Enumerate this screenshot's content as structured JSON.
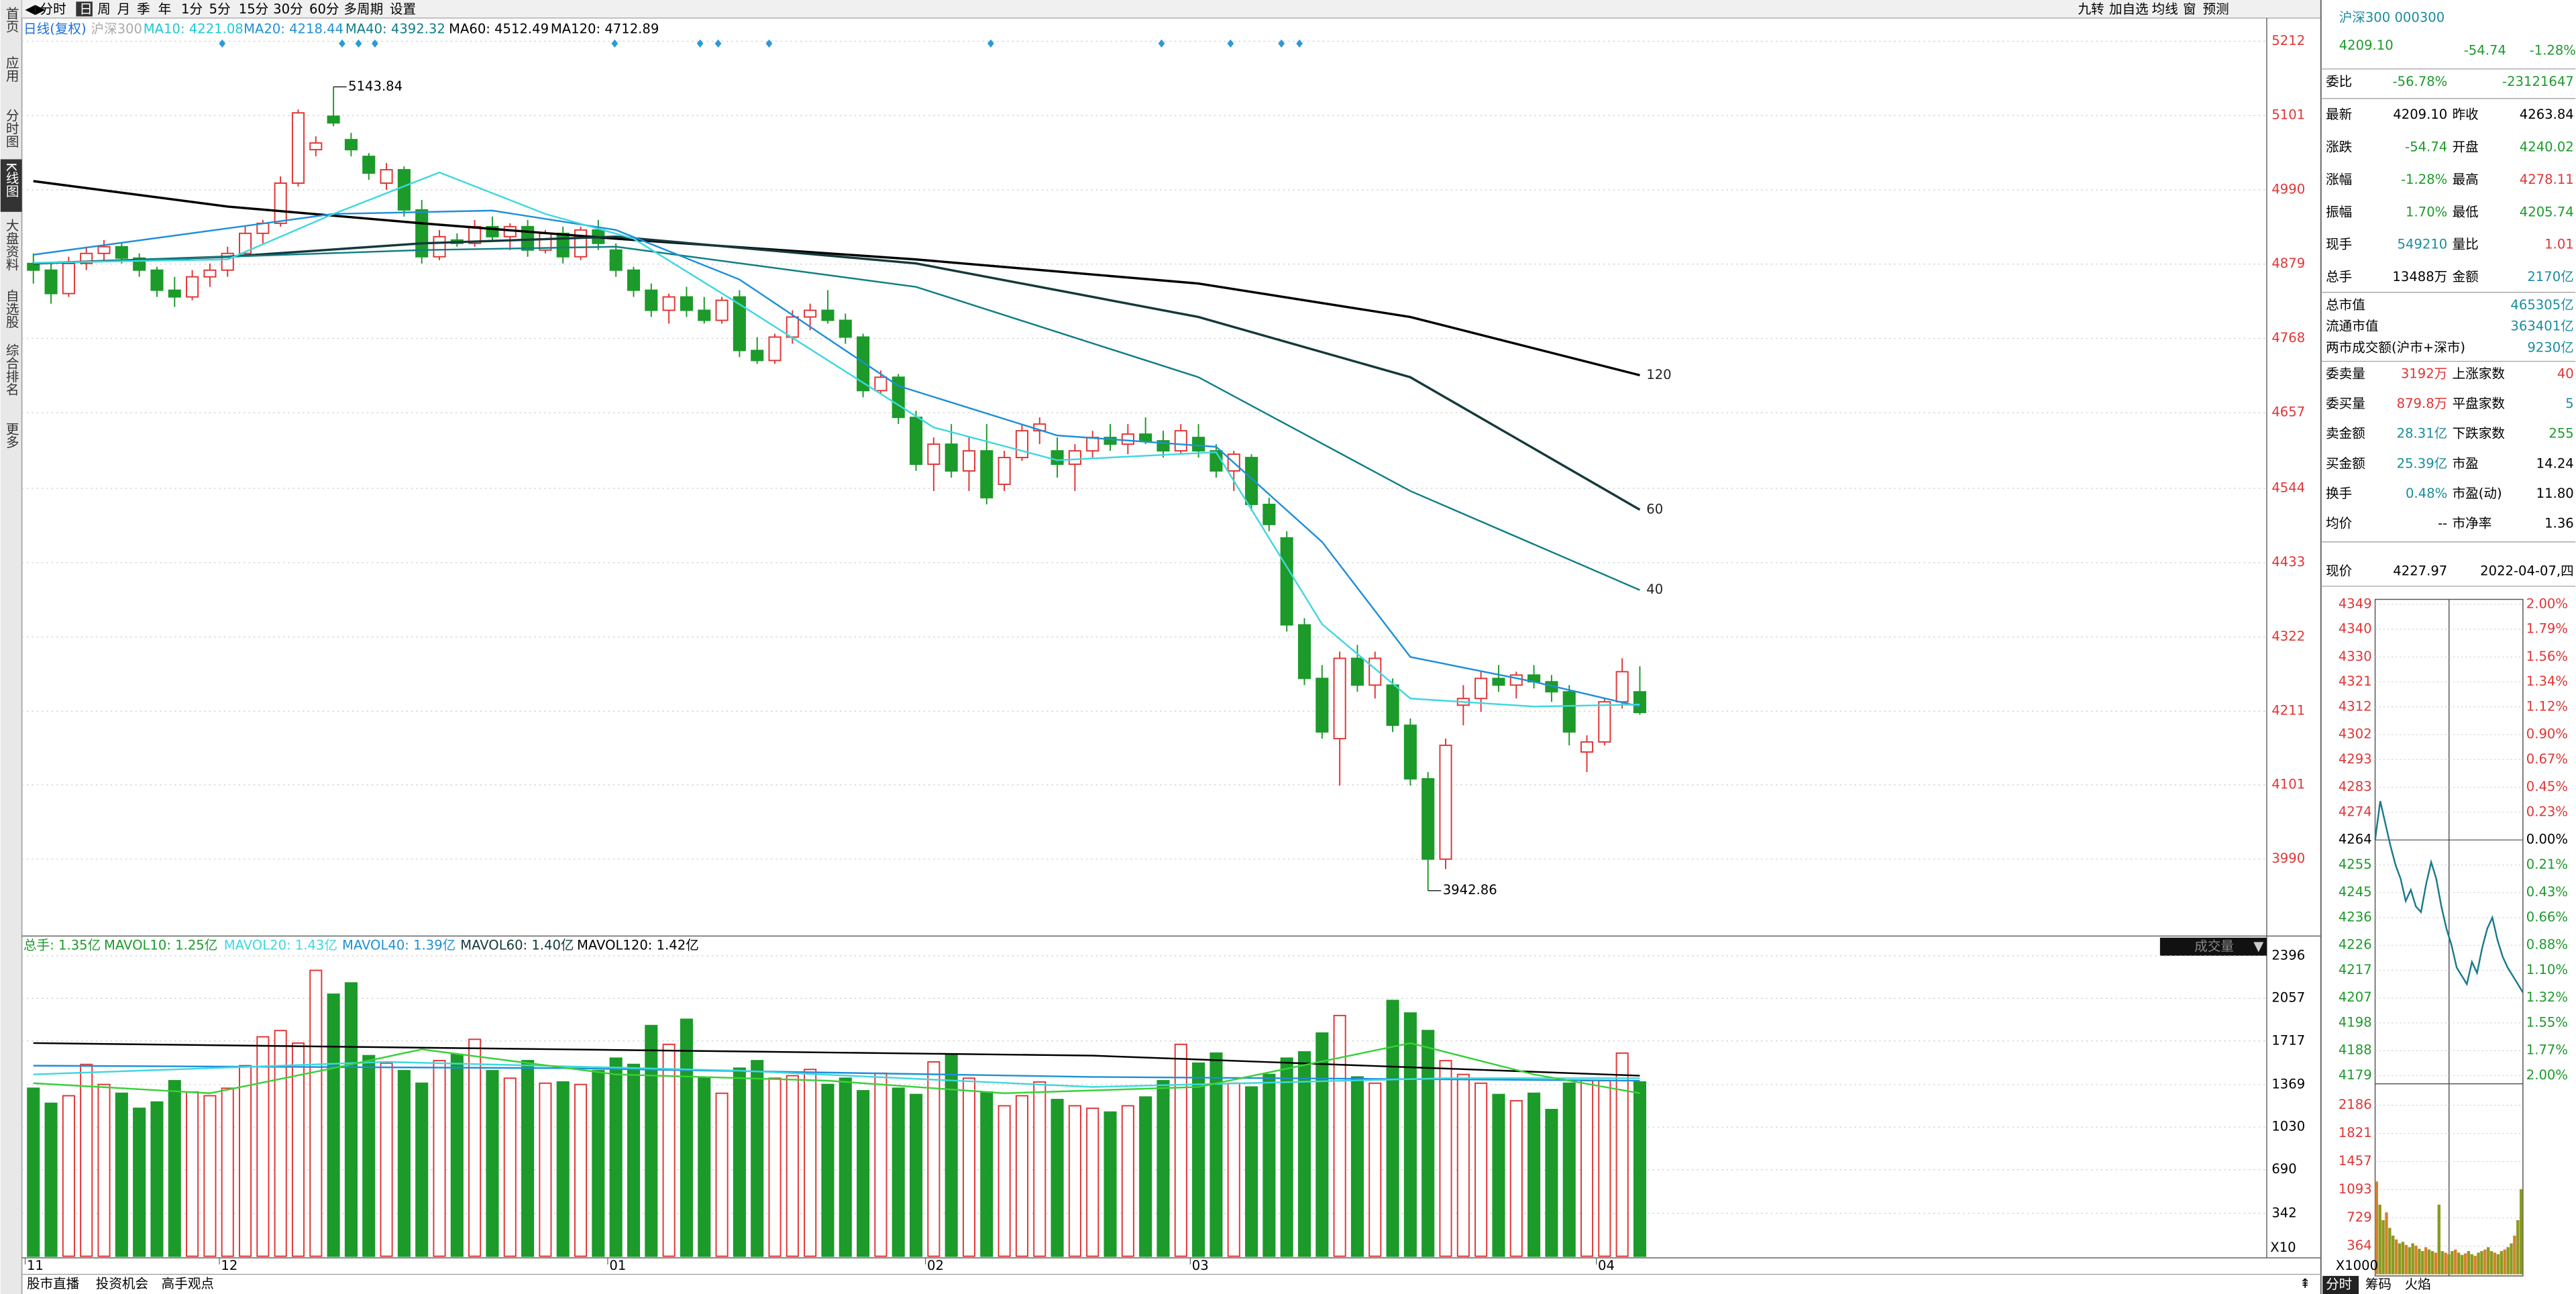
{
  "toolbar": [
    "分时",
    "日",
    "周",
    "月",
    "季",
    "年",
    "1分",
    "5分",
    "15分",
    "30分",
    "60分",
    "多周期",
    "设置"
  ],
  "toolbar_right": [
    "九转",
    "加自选",
    "均线",
    "窗",
    "预测"
  ],
  "sidebar": [
    "首页",
    "应用",
    "分时图",
    "K线图",
    "大盘资料",
    "自选股",
    "综合排名",
    "更多"
  ],
  "main": {
    "legend": [
      "日线(复权)",
      "沪深300",
      "MA10: 4221.08",
      "MA20: 4218.44",
      "MA40: 4392.32",
      "MA60: 4512.49",
      "MA120: 4712.89"
    ],
    "ylim": [
      3880,
      5254
    ],
    "yticks": [
      5212,
      5101,
      4990,
      4879,
      4768,
      4657,
      4544,
      4433,
      4322,
      4211,
      4101,
      3990
    ],
    "high_label": "5143.84",
    "low_label": "3942.86",
    "candles": [
      [
        4880,
        4895,
        4850,
        4870
      ],
      [
        4870,
        4880,
        4820,
        4835
      ],
      [
        4835,
        4890,
        4830,
        4880
      ],
      [
        4880,
        4905,
        4870,
        4895
      ],
      [
        4895,
        4915,
        4885,
        4905
      ],
      [
        4905,
        4910,
        4880,
        4888
      ],
      [
        4888,
        4895,
        4860,
        4870
      ],
      [
        4870,
        4875,
        4830,
        4840
      ],
      [
        4840,
        4860,
        4815,
        4830
      ],
      [
        4830,
        4870,
        4825,
        4860
      ],
      [
        4860,
        4880,
        4845,
        4870
      ],
      [
        4870,
        4905,
        4860,
        4895
      ],
      [
        4895,
        4935,
        4890,
        4925
      ],
      [
        4925,
        4945,
        4910,
        4940
      ],
      [
        4940,
        5010,
        4935,
        5000
      ],
      [
        5000,
        5110,
        4995,
        5105
      ],
      [
        5050,
        5070,
        5040,
        5060
      ],
      [
        5100,
        5143.84,
        5085,
        5090
      ],
      [
        5065,
        5075,
        5040,
        5050
      ],
      [
        5040,
        5045,
        5005,
        5015
      ],
      [
        5000,
        5030,
        4990,
        5020
      ],
      [
        5020,
        5025,
        4950,
        4960
      ],
      [
        4960,
        4975,
        4880,
        4890
      ],
      [
        4890,
        4930,
        4885,
        4920
      ],
      [
        4915,
        4925,
        4905,
        4910
      ],
      [
        4910,
        4945,
        4905,
        4935
      ],
      [
        4935,
        4950,
        4915,
        4920
      ],
      [
        4920,
        4940,
        4900,
        4935
      ],
      [
        4935,
        4945,
        4890,
        4900
      ],
      [
        4900,
        4930,
        4895,
        4925
      ],
      [
        4925,
        4935,
        4880,
        4890
      ],
      [
        4890,
        4935,
        4885,
        4930
      ],
      [
        4930,
        4945,
        4900,
        4910
      ],
      [
        4900,
        4910,
        4860,
        4870
      ],
      [
        4870,
        4875,
        4830,
        4840
      ],
      [
        4840,
        4850,
        4800,
        4810
      ],
      [
        4810,
        4835,
        4790,
        4830
      ],
      [
        4830,
        4845,
        4800,
        4810
      ],
      [
        4810,
        4830,
        4790,
        4795
      ],
      [
        4795,
        4830,
        4790,
        4825
      ],
      [
        4830,
        4840,
        4740,
        4750
      ],
      [
        4750,
        4770,
        4730,
        4735
      ],
      [
        4735,
        4775,
        4730,
        4770
      ],
      [
        4770,
        4810,
        4760,
        4800
      ],
      [
        4800,
        4820,
        4780,
        4810
      ],
      [
        4810,
        4840,
        4790,
        4795
      ],
      [
        4795,
        4805,
        4760,
        4770
      ],
      [
        4770,
        4775,
        4680,
        4690
      ],
      [
        4690,
        4720,
        4685,
        4710
      ],
      [
        4710,
        4715,
        4640,
        4650
      ],
      [
        4650,
        4660,
        4570,
        4580
      ],
      [
        4580,
        4620,
        4540,
        4610
      ],
      [
        4610,
        4640,
        4560,
        4570
      ],
      [
        4570,
        4620,
        4540,
        4600
      ],
      [
        4600,
        4640,
        4520,
        4530
      ],
      [
        4550,
        4600,
        4540,
        4590
      ],
      [
        4590,
        4640,
        4585,
        4630
      ],
      [
        4630,
        4650,
        4610,
        4640
      ],
      [
        4600,
        4620,
        4560,
        4580
      ],
      [
        4580,
        4610,
        4540,
        4600
      ],
      [
        4600,
        4630,
        4590,
        4620
      ],
      [
        4620,
        4640,
        4600,
        4610
      ],
      [
        4610,
        4640,
        4595,
        4625
      ],
      [
        4625,
        4650,
        4610,
        4615
      ],
      [
        4615,
        4630,
        4590,
        4600
      ],
      [
        4600,
        4640,
        4595,
        4630
      ],
      [
        4620,
        4640,
        4590,
        4600
      ],
      [
        4600,
        4610,
        4560,
        4570
      ],
      [
        4570,
        4600,
        4540,
        4595
      ],
      [
        4590,
        4595,
        4510,
        4520
      ],
      [
        4520,
        4530,
        4480,
        4490
      ],
      [
        4470,
        4480,
        4330,
        4340
      ],
      [
        4340,
        4350,
        4250,
        4260
      ],
      [
        4260,
        4280,
        4170,
        4180
      ],
      [
        4170,
        4300,
        4100,
        4290
      ],
      [
        4290,
        4310,
        4240,
        4250
      ],
      [
        4250,
        4300,
        4230,
        4290
      ],
      [
        4250,
        4260,
        4180,
        4190
      ],
      [
        4190,
        4200,
        4100,
        4110
      ],
      [
        4110,
        4120,
        3942.86,
        3990
      ],
      [
        3990,
        4170,
        3975,
        4160
      ],
      [
        4220,
        4250,
        4190,
        4230
      ],
      [
        4230,
        4270,
        4210,
        4260
      ],
      [
        4260,
        4280,
        4240,
        4250
      ],
      [
        4250,
        4270,
        4230,
        4265
      ],
      [
        4265,
        4280,
        4245,
        4255
      ],
      [
        4255,
        4265,
        4225,
        4240
      ],
      [
        4240,
        4250,
        4160,
        4180
      ],
      [
        4150,
        4175,
        4120,
        4165
      ],
      [
        4165,
        4230,
        4160,
        4225
      ],
      [
        4225,
        4290,
        4215,
        4270
      ],
      [
        4240,
        4278.11,
        4205.74,
        4209.1
      ]
    ],
    "ma": [
      {
        "color": "#000000",
        "end_label": "120",
        "x": [
          0,
          11,
          22,
          33,
          50,
          66,
          78,
          91
        ],
        "values": [
          5003,
          4965,
          4940,
          4917,
          4886,
          4850,
          4800,
          4713
        ]
      },
      {
        "color": "#14393b",
        "end_label": "60",
        "x": [
          0,
          11,
          22,
          33,
          50,
          66,
          78,
          91
        ],
        "values": [
          4880,
          4890,
          4910,
          4920,
          4880,
          4800,
          4710,
          4512
        ]
      },
      {
        "color": "#0f7e86",
        "end_label": "40",
        "x": [
          0,
          22,
          33,
          50,
          66,
          78,
          91
        ],
        "values": [
          4880,
          4900,
          4905,
          4845,
          4710,
          4540,
          4392
        ]
      },
      {
        "color": "#1e8fd8",
        "x": [
          0,
          17,
          26,
          33,
          40,
          49,
          58,
          67,
          73,
          78,
          85,
          91
        ],
        "values": [
          4893,
          4954,
          4959,
          4930,
          4856,
          4697,
          4623,
          4606,
          4464,
          4292,
          4255,
          4218
        ]
      },
      {
        "color": "#3fd7e0",
        "x": [
          0,
          11,
          17,
          23,
          29,
          34,
          40,
          51,
          58,
          67,
          73,
          78,
          85,
          91
        ],
        "values": [
          4881,
          4886,
          4954,
          5016,
          4954,
          4917,
          4819,
          4635,
          4586,
          4598,
          4341,
          4230,
          4218,
          4221
        ]
      }
    ],
    "vol_legend": [
      "总手: 1.35亿",
      "MAVOL10: 1.25亿",
      "MAVOL20: 1.43亿",
      "MAVOL40: 1.39亿",
      "MAVOL60: 1.40亿",
      "MAVOL120: 1.42亿"
    ],
    "vol_button": "成交量",
    "vol_unit": "X10",
    "vol_ylim": [
      0,
      2423
    ],
    "vol_yticks": [
      2396,
      2057,
      1717,
      1369,
      1030,
      690,
      342
    ],
    "volume": [
      1340,
      1220,
      1280,
      1530,
      1370,
      1300,
      1180,
      1230,
      1400,
      1310,
      1280,
      1340,
      1520,
      1750,
      1800,
      1700,
      2280,
      2090,
      2180,
      1600,
      1540,
      1480,
      1380,
      1560,
      1610,
      1730,
      1480,
      1420,
      1560,
      1380,
      1390,
      1370,
      1480,
      1580,
      1530,
      1840,
      1690,
      1890,
      1420,
      1300,
      1500,
      1560,
      1420,
      1440,
      1490,
      1370,
      1420,
      1320,
      1460,
      1340,
      1290,
      1550,
      1610,
      1420,
      1310,
      1200,
      1280,
      1390,
      1250,
      1200,
      1180,
      1150,
      1200,
      1270,
      1400,
      1690,
      1540,
      1620,
      1380,
      1350,
      1450,
      1580,
      1630,
      1780,
      1920,
      1430,
      1380,
      2040,
      1940,
      1800,
      1560,
      1450,
      1380,
      1290,
      1240,
      1300,
      1170,
      1380,
      1400,
      1400,
      1620,
      1390
    ],
    "vol_ma": [
      {
        "color": "#000000",
        "x": [
          0,
          30,
          60,
          91
        ],
        "values": [
          1700,
          1650,
          1600,
          1440
        ]
      },
      {
        "color": "#1e8fd8",
        "x": [
          0,
          30,
          60,
          91
        ],
        "values": [
          1520,
          1500,
          1430,
          1400
        ]
      },
      {
        "color": "#3fd7e0",
        "x": [
          0,
          20,
          40,
          60,
          80,
          91
        ],
        "values": [
          1450,
          1550,
          1480,
          1350,
          1420,
          1420
        ]
      },
      {
        "color": "#3ad03a",
        "x": [
          0,
          10,
          17,
          22,
          33,
          45,
          55,
          66,
          78,
          85,
          91
        ],
        "values": [
          1380,
          1300,
          1500,
          1650,
          1450,
          1400,
          1300,
          1350,
          1700,
          1450,
          1300
        ]
      }
    ],
    "months": {
      "labels": [
        "11",
        "12",
        "01",
        "02",
        "03",
        "04"
      ],
      "index": [
        0,
        11,
        33,
        51,
        66,
        89
      ]
    }
  },
  "bottom_tabs": [
    "股市直播",
    "投资机会",
    "高手观点"
  ],
  "quote": {
    "name": "沪深300 000300",
    "price": "4209.10",
    "change": "-54.74",
    "pct": "-1.28%",
    "ratio": [
      "委比",
      "-56.78%",
      "-23121647"
    ],
    "rows": [
      [
        "最新",
        "4209.10",
        "昨收",
        "4263.84"
      ],
      [
        "涨跌",
        "-54.74",
        "开盘",
        "4240.02"
      ],
      [
        "涨幅",
        "-1.28%",
        "最高",
        "4278.11"
      ],
      [
        "振幅",
        "1.70%",
        "最低",
        "4205.74"
      ],
      [
        "现手",
        "549210",
        "量比",
        "1.01"
      ],
      [
        "总手",
        "13488万",
        "金额",
        "2170亿"
      ]
    ],
    "caps": [
      [
        "总市值",
        "465305亿"
      ],
      [
        "流通市值",
        "363401亿"
      ],
      [
        "两市成交额(沪市+深市)",
        "9230亿"
      ]
    ],
    "rows2": [
      [
        "委卖量",
        "3192万",
        "上涨家数",
        "40"
      ],
      [
        "委买量",
        "879.8万",
        "平盘家数",
        "5"
      ],
      [
        "卖金额",
        "28.31亿",
        "下跌家数",
        "255"
      ],
      [
        "买金额",
        "25.39亿",
        "市盈",
        "14.24"
      ],
      [
        "换手",
        "0.48%",
        "市盈(动)",
        "11.80"
      ],
      [
        "均价",
        "--",
        "市净率",
        "1.36"
      ]
    ],
    "now": [
      "现价",
      "4227.97",
      "2022-04-07,四"
    ]
  },
  "mini": {
    "ylim": [
      4179,
      4349
    ],
    "yticks": [
      4349,
      4340,
      4330,
      4321,
      4312,
      4302,
      4293,
      4283,
      4274,
      4264,
      4255,
      4245,
      4236,
      4226,
      4217,
      4207,
      4198,
      4188,
      4179
    ],
    "pct_ticks": [
      "2.00%",
      "1.79%",
      "1.56%",
      "1.34%",
      "1.12%",
      "0.90%",
      "0.67%",
      "0.45%",
      "0.23%",
      "0.00%",
      "0.21%",
      "0.43%",
      "0.66%",
      "0.88%",
      "1.10%",
      "1.32%",
      "1.55%",
      "1.77%",
      "2.00%"
    ],
    "prices": [
      4264,
      4278,
      4270,
      4262,
      4255,
      4250,
      4242,
      4246,
      4240,
      4238,
      4248,
      4256,
      4250,
      4240,
      4232,
      4226,
      4218,
      4215,
      4212,
      4220,
      4216,
      4225,
      4232,
      4236,
      4228,
      4222,
      4218,
      4215,
      4212,
      4209
    ],
    "vol_ylim": [
      0,
      2356
    ],
    "vol_yticks": [
      2186,
      1821,
      1457,
      1093,
      729,
      364
    ],
    "vol_unit": "X1000",
    "volume": [
      1200,
      900,
      700,
      800,
      600,
      500,
      450,
      400,
      420,
      380,
      350,
      400,
      370,
      330,
      300,
      350,
      320,
      300,
      280,
      900,
      300,
      280,
      260,
      300,
      320,
      280,
      250,
      270,
      300,
      260,
      240,
      280,
      300,
      320,
      350,
      300,
      280,
      260,
      300,
      320,
      350,
      400,
      500,
      700,
      1100
    ],
    "tabs": [
      "分时",
      "筹码",
      "火焰"
    ]
  }
}
